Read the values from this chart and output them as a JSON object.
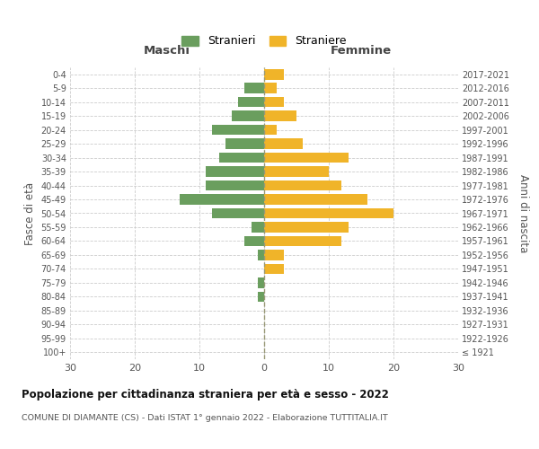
{
  "age_groups": [
    "100+",
    "95-99",
    "90-94",
    "85-89",
    "80-84",
    "75-79",
    "70-74",
    "65-69",
    "60-64",
    "55-59",
    "50-54",
    "45-49",
    "40-44",
    "35-39",
    "30-34",
    "25-29",
    "20-24",
    "15-19",
    "10-14",
    "5-9",
    "0-4"
  ],
  "birth_years": [
    "≤ 1921",
    "1922-1926",
    "1927-1931",
    "1932-1936",
    "1937-1941",
    "1942-1946",
    "1947-1951",
    "1952-1956",
    "1957-1961",
    "1962-1966",
    "1967-1971",
    "1972-1976",
    "1977-1981",
    "1982-1986",
    "1987-1991",
    "1992-1996",
    "1997-2001",
    "2002-2006",
    "2007-2011",
    "2012-2016",
    "2017-2021"
  ],
  "maschi": [
    0,
    0,
    0,
    0,
    1,
    1,
    0,
    1,
    3,
    2,
    8,
    13,
    9,
    9,
    7,
    6,
    8,
    5,
    4,
    3,
    0
  ],
  "femmine": [
    0,
    0,
    0,
    0,
    0,
    0,
    3,
    3,
    12,
    13,
    20,
    16,
    12,
    10,
    13,
    6,
    2,
    5,
    3,
    2,
    3
  ],
  "male_color": "#6a9e5e",
  "female_color": "#f0b429",
  "title": "Popolazione per cittadinanza straniera per età e sesso - 2022",
  "subtitle": "COMUNE DI DIAMANTE (CS) - Dati ISTAT 1° gennaio 2022 - Elaborazione TUTTITALIA.IT",
  "xlabel_left": "Maschi",
  "xlabel_right": "Femmine",
  "ylabel_left": "Fasce di età",
  "ylabel_right": "Anni di nascita",
  "legend_male": "Stranieri",
  "legend_female": "Straniere",
  "xlim": 30,
  "background_color": "#ffffff",
  "grid_color": "#cccccc",
  "dashed_line_color": "#999977"
}
